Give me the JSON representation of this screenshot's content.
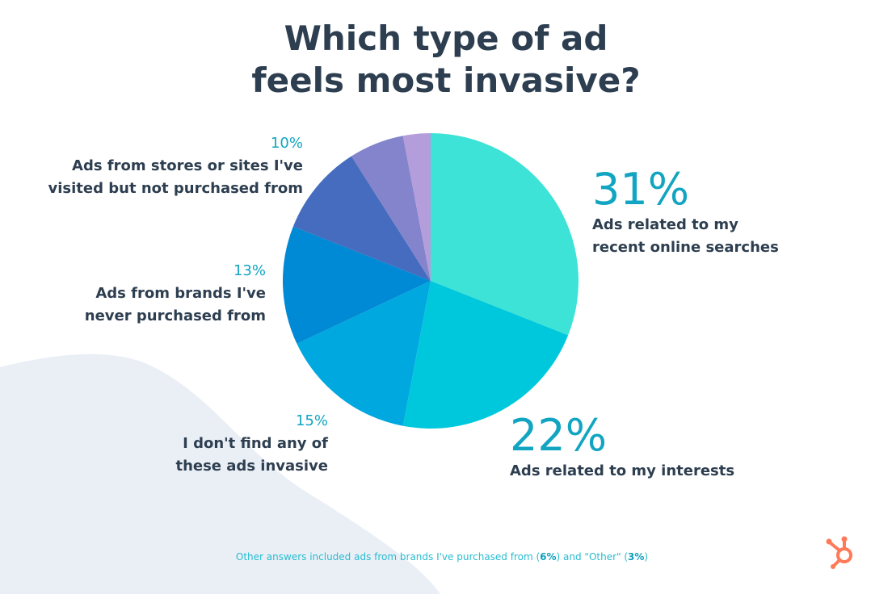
{
  "chart_data": {
    "type": "pie",
    "title": "Which type of ad feels most invasive?",
    "title_lines": [
      "Which type of ad",
      "feels most invasive?"
    ],
    "start_angle": "12 o'clock, clockwise",
    "slices": [
      {
        "pct_label": "31%",
        "value": 31,
        "label_lines": [
          "Ads related to my",
          "recent online searches"
        ],
        "color": "#3de3d6"
      },
      {
        "pct_label": "22%",
        "value": 22,
        "label_lines": [
          "Ads related to my interests"
        ],
        "color": "#00c8dc"
      },
      {
        "pct_label": "15%",
        "value": 15,
        "label_lines": [
          "I don't find any of",
          "these ads invasive"
        ],
        "color": "#00a8e0"
      },
      {
        "pct_label": "13%",
        "value": 13,
        "label_lines": [
          "Ads from brands I've",
          "never purchased from"
        ],
        "color": "#0089d4"
      },
      {
        "pct_label": "10%",
        "value": 10,
        "label_lines": [
          "Ads from stores or sites I've",
          "visited but not purchased from"
        ],
        "color": "#456cbf"
      },
      {
        "value": 6,
        "color": "#8484cc"
      },
      {
        "value": 3,
        "color": "#b39ddb"
      }
    ],
    "footnote": {
      "prefix": "Other answers included ads from brands I've purchased from (",
      "v1": "6%",
      "mid": ") and \"Other\" (",
      "v2": "3%",
      "suffix": ")"
    }
  },
  "brand": {
    "logo_icon": "hubspot-sprocket-icon",
    "color": "#ff7a59"
  }
}
